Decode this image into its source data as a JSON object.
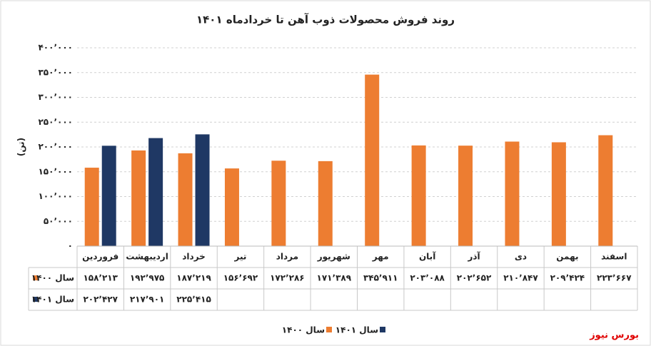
{
  "chart_data": {
    "type": "bar",
    "title": "روند فروش محصولات ذوب آهن تا خردادماه ۱۴۰۱",
    "y_label": "(تن)",
    "source": "بورس نیوز",
    "categories": [
      "فروردین",
      "اردیبهشت",
      "خرداد",
      "تیر",
      "مرداد",
      "شهریور",
      "مهر",
      "آبان",
      "آذر",
      "دی",
      "بهمن",
      "اسفند"
    ],
    "series": [
      {
        "name": "سال ۱۴۰۰",
        "color": "#ed7d31",
        "values": [
          158213,
          192975,
          187219,
          156692,
          172286,
          171389,
          345911,
          203088,
          202652,
          210847,
          209424,
          223667
        ],
        "value_labels": [
          "۱۵۸٬۲۱۳",
          "۱۹۲٬۹۷۵",
          "۱۸۷٬۲۱۹",
          "۱۵۶٬۶۹۲",
          "۱۷۲٬۲۸۶",
          "۱۷۱٬۳۸۹",
          "۳۴۵٬۹۱۱",
          "۲۰۳٬۰۸۸",
          "۲۰۲٬۶۵۲",
          "۲۱۰٬۸۴۷",
          "۲۰۹٬۴۲۴",
          "۲۲۳٬۶۶۷"
        ]
      },
      {
        "name": "سال ۱۴۰۱",
        "color": "#1f3864",
        "values": [
          202427,
          217901,
          225415,
          null,
          null,
          null,
          null,
          null,
          null,
          null,
          null,
          null
        ],
        "value_labels": [
          "۲۰۲٬۴۲۷",
          "۲۱۷٬۹۰۱",
          "۲۲۵٬۴۱۵",
          null,
          null,
          null,
          null,
          null,
          null,
          null,
          null,
          null
        ]
      }
    ],
    "ylim": [
      0,
      400000
    ],
    "yticks": [
      {
        "value": 0,
        "label": "۰"
      },
      {
        "value": 50000,
        "label": "۵۰٬۰۰۰"
      },
      {
        "value": 100000,
        "label": "۱۰۰٬۰۰۰"
      },
      {
        "value": 150000,
        "label": "۱۵۰٬۰۰۰"
      },
      {
        "value": 200000,
        "label": "۲۰۰٬۰۰۰"
      },
      {
        "value": 250000,
        "label": "۲۵۰٬۰۰۰"
      },
      {
        "value": 300000,
        "label": "۳۰۰٬۰۰۰"
      },
      {
        "value": 350000,
        "label": "۳۵۰٬۰۰۰"
      },
      {
        "value": 400000,
        "label": "۴۰۰٬۰۰۰"
      }
    ],
    "grid": true
  }
}
